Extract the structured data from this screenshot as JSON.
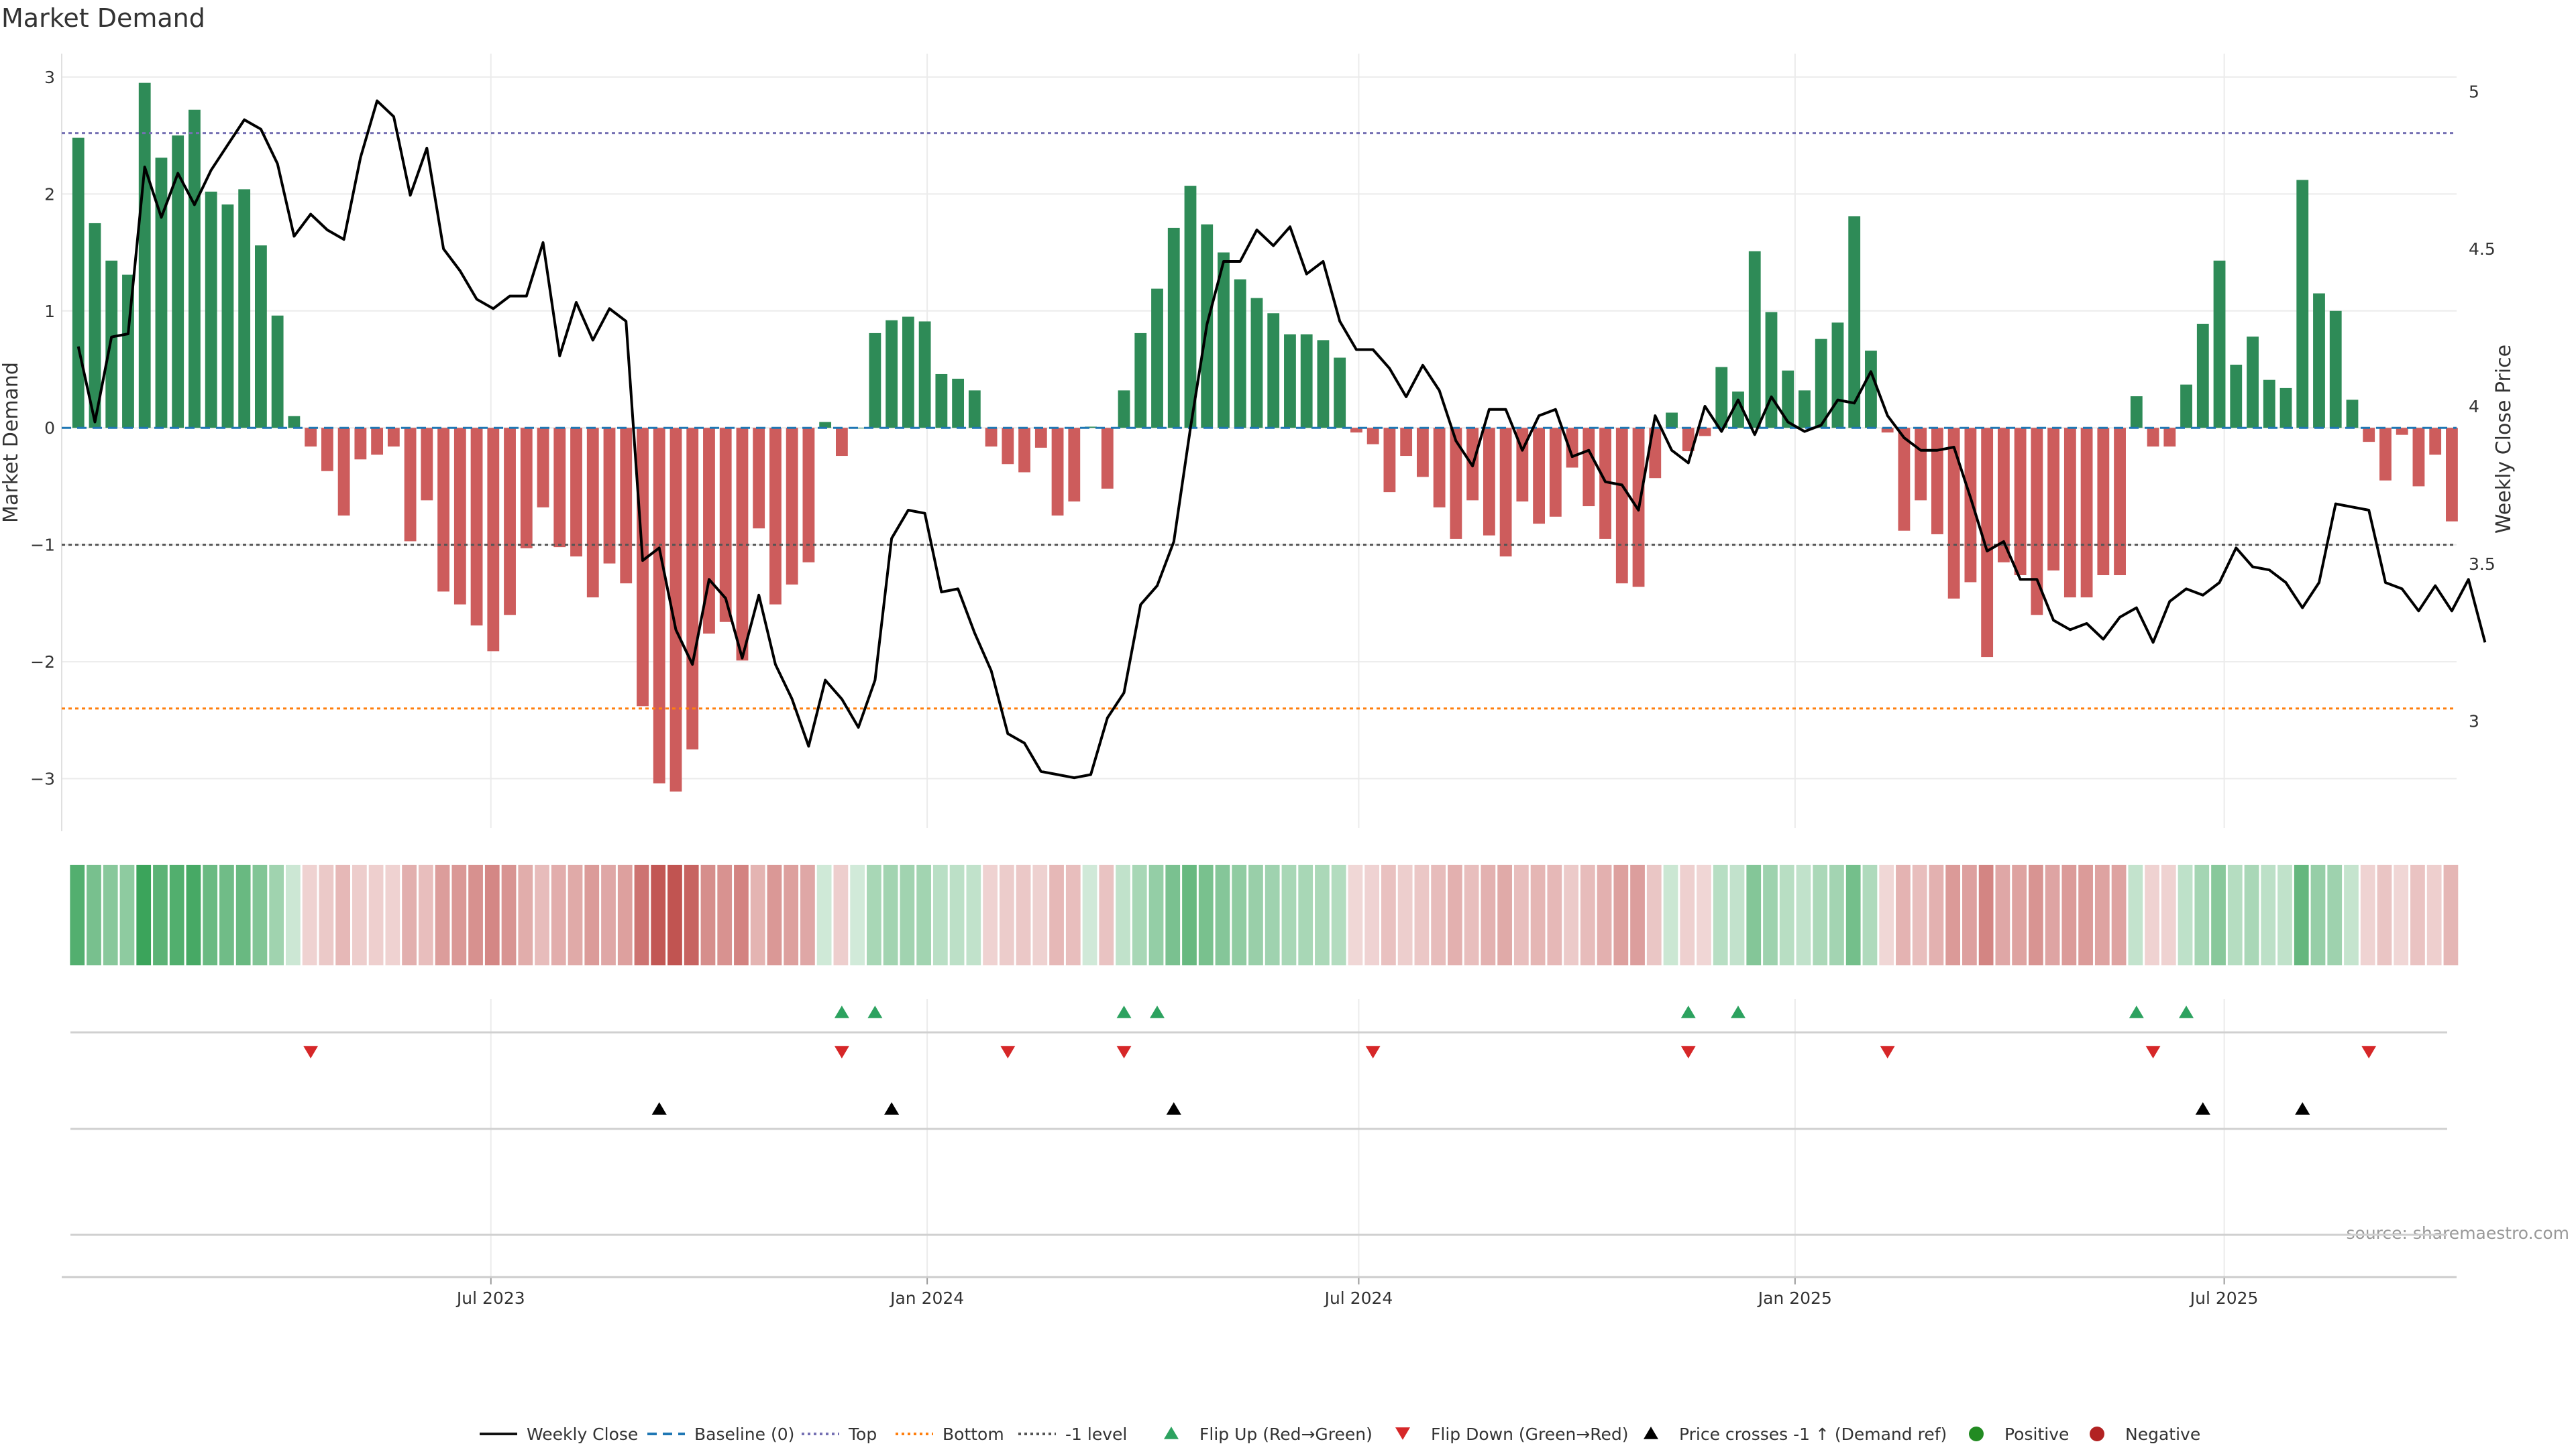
{
  "chart_data": {
    "type": "bar",
    "title": "Market Demand",
    "ylabel": "Market Demand",
    "ylabel_right": "Weekly Close Price",
    "ylim": [
      -3.45,
      3.2
    ],
    "ylim_right": [
      2.65,
      5.12
    ],
    "yticks": [
      {
        "v": 3,
        "label": "3"
      },
      {
        "v": 2,
        "label": "2"
      },
      {
        "v": 1,
        "label": "1"
      },
      {
        "v": 0,
        "label": "0"
      },
      {
        "v": -1,
        "label": "−1"
      },
      {
        "v": -2,
        "label": "−2"
      },
      {
        "v": -3,
        "label": "−3"
      }
    ],
    "yticks_right": [
      {
        "v": 5,
        "label": "5"
      },
      {
        "v": 4.5,
        "label": "4.5"
      },
      {
        "v": 4,
        "label": "4"
      },
      {
        "v": 3.5,
        "label": "3.5"
      },
      {
        "v": 3,
        "label": "3"
      }
    ],
    "x_start": "2023-01-01",
    "x_end": "2025-10-07",
    "x_ticks": [
      {
        "date": "2023-07-01",
        "label": "Jul 2023"
      },
      {
        "date": "2024-01-01",
        "label": "Jan 2024"
      },
      {
        "date": "2024-07-01",
        "label": "Jul 2024"
      },
      {
        "date": "2025-01-01",
        "label": "Jan 2025"
      },
      {
        "date": "2025-07-01",
        "label": "Jul 2025"
      }
    ],
    "first_week": "2023-01-08",
    "demand": [
      2.48,
      1.75,
      1.43,
      1.31,
      2.95,
      2.31,
      2.5,
      2.72,
      2.02,
      1.91,
      2.04,
      1.56,
      0.96,
      0.1,
      -0.16,
      -0.37,
      -0.75,
      -0.27,
      -0.23,
      -0.16,
      -0.97,
      -0.62,
      -1.4,
      -1.51,
      -1.69,
      -1.91,
      -1.6,
      -1.03,
      -0.68,
      -1.02,
      -1.1,
      -1.45,
      -1.16,
      -1.33,
      -2.38,
      -3.04,
      -3.11,
      -2.75,
      -1.76,
      -1.66,
      -1.99,
      -0.86,
      -1.51,
      -1.34,
      -1.15,
      0.05,
      -0.24,
      0,
      0.81,
      0.92,
      0.95,
      0.91,
      0.46,
      0.42,
      0.32,
      -0.16,
      -0.31,
      -0.38,
      -0.17,
      -0.75,
      -0.63,
      0.01,
      -0.52,
      0.32,
      0.81,
      1.19,
      1.71,
      2.07,
      1.74,
      1.5,
      1.27,
      1.11,
      0.98,
      0.8,
      0.8,
      0.75,
      0.6,
      -0.04,
      -0.14,
      -0.55,
      -0.24,
      -0.42,
      -0.68,
      -0.95,
      -0.62,
      -0.92,
      -1.1,
      -0.63,
      -0.82,
      -0.76,
      -0.34,
      -0.67,
      -0.95,
      -1.33,
      -1.36,
      -0.43,
      0.13,
      -0.2,
      -0.07,
      0.52,
      0.31,
      1.51,
      0.99,
      0.49,
      0.32,
      0.76,
      0.9,
      1.81,
      0.66,
      -0.04,
      -0.88,
      -0.62,
      -0.91,
      -1.46,
      -1.32,
      -1.96,
      -1.15,
      -1.26,
      -1.6,
      -1.22,
      -1.45,
      -1.45,
      -1.26,
      -1.26,
      0.27,
      -0.16,
      -0.16,
      0.37,
      0.89,
      1.43,
      0.54,
      0.78,
      0.41,
      0.34,
      2.12,
      1.15,
      1.0,
      0.24,
      -0.12,
      -0.45,
      -0.06,
      -0.5,
      -0.23,
      -0.8
    ],
    "close": [
      4.19,
      3.95,
      4.22,
      4.23,
      4.76,
      4.6,
      4.74,
      4.64,
      4.75,
      4.83,
      4.91,
      4.88,
      4.77,
      4.54,
      4.61,
      4.56,
      4.53,
      4.79,
      4.97,
      4.92,
      4.67,
      4.82,
      4.5,
      4.43,
      4.34,
      4.31,
      4.35,
      4.35,
      4.52,
      4.16,
      4.33,
      4.21,
      4.31,
      4.27,
      3.51,
      3.55,
      3.29,
      3.18,
      3.45,
      3.39,
      3.2,
      3.4,
      3.18,
      3.07,
      2.92,
      3.13,
      3.07,
      2.98,
      3.13,
      3.58,
      3.67,
      3.66,
      3.41,
      3.42,
      3.28,
      3.16,
      2.96,
      2.93,
      2.84,
      2.83,
      2.82,
      2.83,
      3.01,
      3.09,
      3.37,
      3.43,
      3.57,
      3.93,
      4.26,
      4.46,
      4.46,
      4.56,
      4.51,
      4.57,
      4.42,
      4.46,
      4.27,
      4.18,
      4.18,
      4.12,
      4.03,
      4.13,
      4.05,
      3.89,
      3.81,
      3.99,
      3.99,
      3.86,
      3.97,
      3.99,
      3.84,
      3.86,
      3.76,
      3.75,
      3.67,
      3.97,
      3.86,
      3.82,
      4.0,
      3.92,
      4.02,
      3.91,
      4.03,
      3.95,
      3.92,
      3.94,
      4.02,
      4.01,
      4.11,
      3.97,
      3.9,
      3.86,
      3.86,
      3.87,
      3.71,
      3.54,
      3.57,
      3.45,
      3.45,
      3.32,
      3.29,
      3.31,
      3.26,
      3.33,
      3.36,
      3.25,
      3.38,
      3.42,
      3.4,
      3.44,
      3.55,
      3.49,
      3.48,
      3.44,
      3.36,
      3.44,
      3.69,
      3.68,
      3.67,
      3.44,
      3.42,
      3.35,
      3.43,
      3.35,
      3.45,
      3.25
    ],
    "levels": {
      "top": 2.52,
      "bottom": -2.4,
      "minus_one": -1.0,
      "baseline": 0
    },
    "flip_up_weeks": [
      46,
      48,
      63,
      65,
      97,
      100,
      124,
      127
    ],
    "flip_down_weeks": [
      14,
      46,
      56,
      63,
      78,
      97,
      109,
      125,
      138
    ],
    "price_cross_weeks": [
      35,
      49,
      66,
      128,
      134
    ],
    "legend": [
      {
        "label": "Weekly Close",
        "kind": "line",
        "color": "#111111"
      },
      {
        "label": "Baseline (0)",
        "kind": "dash",
        "color": "#1f77b4"
      },
      {
        "label": "Top",
        "kind": "dot",
        "color": "#7570b3"
      },
      {
        "label": "Bottom",
        "kind": "dot",
        "color": "#ff7f0e"
      },
      {
        "label": "-1 level",
        "kind": "dot",
        "color": "#555555"
      },
      {
        "label": "Flip Up (Red→Green)",
        "kind": "tri-up",
        "color": "#2ca25f"
      },
      {
        "label": "Flip Down (Green→Red)",
        "kind": "tri-down",
        "color": "#d62728"
      },
      {
        "label": "Price crosses -1 ↑ (Demand ref)",
        "kind": "tri-up",
        "color": "#000000"
      },
      {
        "label": "Positive",
        "kind": "dot-circle",
        "color": "#228b22"
      },
      {
        "label": "Negative",
        "kind": "dot-circle",
        "color": "#b22222"
      }
    ],
    "colors": {
      "positive": "#2e8b57",
      "negative": "#cd5c5c",
      "price": "#000000",
      "grid": "#ebebeb"
    },
    "grid": true,
    "legend_position": "bottom"
  },
  "source": "source: sharemaestro.com"
}
